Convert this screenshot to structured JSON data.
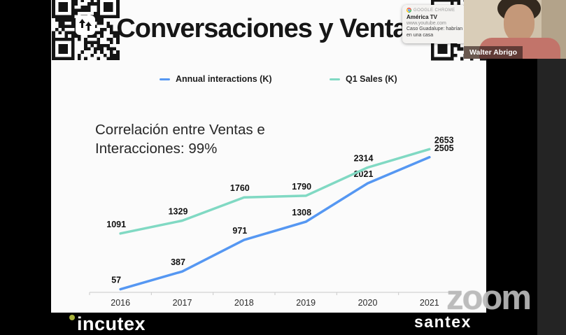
{
  "slide": {
    "title": "Conversaciones y Ventas",
    "correlation_line1": "Correlación entre Ventas e",
    "correlation_line2": "Interacciones: 99%"
  },
  "chart_data": {
    "type": "line",
    "x": [
      2016,
      2017,
      2018,
      2019,
      2020,
      2021
    ],
    "series": [
      {
        "name": "Annual interactions (K)",
        "color": "#5597f2",
        "values": [
          57,
          387,
          971,
          1308,
          2021,
          2505
        ]
      },
      {
        "name": "Q1 Sales (K)",
        "color": "#80d9c3",
        "values": [
          1091,
          1329,
          1760,
          1790,
          2314,
          2653
        ]
      }
    ],
    "ylim": [
      0,
      2800
    ],
    "grid": false,
    "legend_position": "top",
    "data_labels": true,
    "xlabel": "",
    "ylabel": ""
  },
  "notification": {
    "app": "GOOGLE CHROME",
    "title": "América TV",
    "source": "www.youtube.com",
    "body_line1": "Caso Guadalupe: habrían",
    "body_line2": "en una casa"
  },
  "video": {
    "participant_name": "Walter Abrigo"
  },
  "footer": {
    "left_logo": "incutex",
    "right_logo": "santex"
  },
  "watermark": "zoom",
  "colors": {
    "series_blue": "#5597f2",
    "series_teal": "#80d9c3",
    "incutex_dot": "#a9b23c"
  }
}
